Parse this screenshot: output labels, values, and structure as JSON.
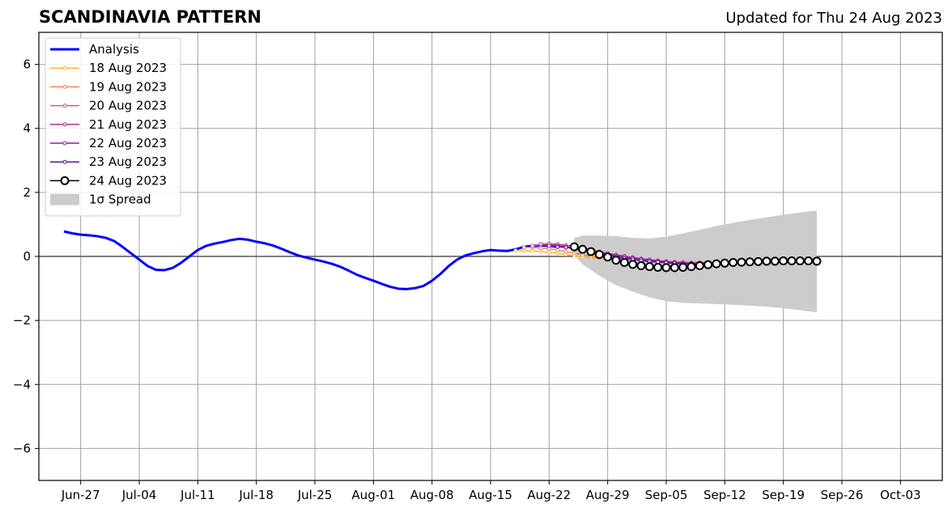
{
  "chart_data": {
    "type": "line",
    "title": "SCANDINAVIA PATTERN",
    "subtitle": "Updated for Thu 24 Aug 2023",
    "xlabel": "",
    "ylabel": "",
    "xlim": [
      "2023-06-22",
      "2023-10-08"
    ],
    "ylim": [
      -7,
      7
    ],
    "grid": true,
    "legend_position": "top-left",
    "x_ticks": [
      "2023-06-27",
      "2023-07-04",
      "2023-07-11",
      "2023-07-18",
      "2023-07-25",
      "2023-08-01",
      "2023-08-08",
      "2023-08-15",
      "2023-08-22",
      "2023-08-29",
      "2023-09-05",
      "2023-09-12",
      "2023-09-19",
      "2023-09-26",
      "2023-10-03"
    ],
    "x_tick_labels": [
      "Jun-27",
      "Jul-04",
      "Jul-11",
      "Jul-18",
      "Jul-25",
      "Aug-01",
      "Aug-08",
      "Aug-15",
      "Aug-22",
      "Aug-29",
      "Sep-05",
      "Sep-12",
      "Sep-19",
      "Sep-26",
      "Oct-03"
    ],
    "y_ticks": [
      6,
      4,
      2,
      0,
      -2,
      -4,
      -6
    ],
    "y_tick_labels": [
      "6",
      "4",
      "2",
      "0",
      "−2",
      "−4",
      "−6"
    ],
    "series": [
      {
        "name": "Analysis",
        "color": "#0000ff",
        "style": "line",
        "x": [
          "2023-06-25",
          "2023-06-26",
          "2023-06-27",
          "2023-06-28",
          "2023-06-29",
          "2023-06-30",
          "2023-07-01",
          "2023-07-02",
          "2023-07-03",
          "2023-07-04",
          "2023-07-05",
          "2023-07-06",
          "2023-07-07",
          "2023-07-08",
          "2023-07-09",
          "2023-07-10",
          "2023-07-11",
          "2023-07-12",
          "2023-07-13",
          "2023-07-14",
          "2023-07-15",
          "2023-07-16",
          "2023-07-17",
          "2023-07-18",
          "2023-07-19",
          "2023-07-20",
          "2023-07-21",
          "2023-07-22",
          "2023-07-23",
          "2023-07-24",
          "2023-07-25",
          "2023-07-26",
          "2023-07-27",
          "2023-07-28",
          "2023-07-29",
          "2023-07-30",
          "2023-07-31",
          "2023-08-01",
          "2023-08-02",
          "2023-08-03",
          "2023-08-04",
          "2023-08-05",
          "2023-08-06",
          "2023-08-07",
          "2023-08-08",
          "2023-08-09",
          "2023-08-10",
          "2023-08-11",
          "2023-08-12",
          "2023-08-13",
          "2023-08-14",
          "2023-08-15",
          "2023-08-16",
          "2023-08-17",
          "2023-08-18",
          "2023-08-19",
          "2023-08-20",
          "2023-08-21",
          "2023-08-22",
          "2023-08-23"
        ],
        "y": [
          0.78,
          0.72,
          0.68,
          0.66,
          0.63,
          0.58,
          0.48,
          0.3,
          0.1,
          -0.1,
          -0.3,
          -0.42,
          -0.43,
          -0.36,
          -0.2,
          0.0,
          0.2,
          0.33,
          0.4,
          0.45,
          0.51,
          0.55,
          0.52,
          0.46,
          0.41,
          0.34,
          0.24,
          0.13,
          0.03,
          -0.04,
          -0.1,
          -0.16,
          -0.23,
          -0.32,
          -0.44,
          -0.57,
          -0.67,
          -0.76,
          -0.86,
          -0.95,
          -1.01,
          -1.02,
          -0.99,
          -0.92,
          -0.76,
          -0.55,
          -0.3,
          -0.1,
          0.03,
          0.1,
          0.16,
          0.2,
          0.18,
          0.17,
          0.22,
          0.3,
          0.33,
          0.34,
          0.33,
          0.3
        ]
      },
      {
        "name": "18 Aug 2023",
        "color": "#fcb52f",
        "style": "small-markers",
        "x": [
          "2023-08-18",
          "2023-08-19",
          "2023-08-20",
          "2023-08-21",
          "2023-08-22",
          "2023-08-23",
          "2023-08-24",
          "2023-08-25",
          "2023-08-26",
          "2023-08-27",
          "2023-08-28"
        ],
        "y": [
          0.18,
          0.18,
          0.17,
          0.15,
          0.13,
          0.1,
          0.06,
          0.02,
          -0.02,
          -0.05,
          -0.07
        ]
      },
      {
        "name": "19 Aug 2023",
        "color": "#f0834f",
        "style": "small-markers",
        "x": [
          "2023-08-19",
          "2023-08-20",
          "2023-08-21",
          "2023-08-22",
          "2023-08-23",
          "2023-08-24",
          "2023-08-25",
          "2023-08-26",
          "2023-08-27",
          "2023-08-28",
          "2023-08-29"
        ],
        "y": [
          0.28,
          0.28,
          0.26,
          0.24,
          0.2,
          0.15,
          0.1,
          0.05,
          0.0,
          -0.04,
          -0.08
        ]
      },
      {
        "name": "20 Aug 2023",
        "color": "#dc5b6b",
        "style": "small-markers",
        "x": [
          "2023-08-20",
          "2023-08-21",
          "2023-08-22",
          "2023-08-23",
          "2023-08-24",
          "2023-08-25",
          "2023-08-26",
          "2023-08-27",
          "2023-08-28",
          "2023-08-29",
          "2023-08-30",
          "2023-08-31",
          "2023-09-01",
          "2023-09-02",
          "2023-09-03",
          "2023-09-04",
          "2023-09-05",
          "2023-09-06",
          "2023-09-07",
          "2023-09-08",
          "2023-09-09",
          "2023-09-10",
          "2023-09-11"
        ],
        "y": [
          0.33,
          0.36,
          0.36,
          0.34,
          0.3,
          0.25,
          0.19,
          0.13,
          0.08,
          0.03,
          -0.01,
          -0.04,
          -0.07,
          -0.09,
          -0.11,
          -0.13,
          -0.15,
          -0.17,
          -0.18,
          -0.19,
          -0.19,
          -0.19,
          -0.18
        ]
      },
      {
        "name": "21 Aug 2023",
        "color": "#b52f8c",
        "style": "small-markers",
        "x": [
          "2023-08-21",
          "2023-08-22",
          "2023-08-23",
          "2023-08-24",
          "2023-08-25",
          "2023-08-26",
          "2023-08-27",
          "2023-08-28",
          "2023-08-29",
          "2023-08-30",
          "2023-08-31",
          "2023-09-01",
          "2023-09-02",
          "2023-09-03",
          "2023-09-04",
          "2023-09-05",
          "2023-09-06",
          "2023-09-07",
          "2023-09-08",
          "2023-09-09",
          "2023-09-10",
          "2023-09-11"
        ],
        "y": [
          0.38,
          0.39,
          0.38,
          0.35,
          0.31,
          0.26,
          0.21,
          0.15,
          0.1,
          0.05,
          0.01,
          -0.03,
          -0.07,
          -0.1,
          -0.13,
          -0.16,
          -0.18,
          -0.2,
          -0.21,
          -0.21,
          -0.21,
          -0.2
        ]
      },
      {
        "name": "22 Aug 2023",
        "color": "#8a1ea5",
        "style": "small-markers",
        "x": [
          "2023-08-22",
          "2023-08-23",
          "2023-08-24",
          "2023-08-25",
          "2023-08-26",
          "2023-08-27",
          "2023-08-28",
          "2023-08-29",
          "2023-08-30",
          "2023-08-31",
          "2023-09-01",
          "2023-09-02",
          "2023-09-03",
          "2023-09-04",
          "2023-09-05",
          "2023-09-06",
          "2023-09-07",
          "2023-09-08",
          "2023-09-09",
          "2023-09-10",
          "2023-09-11"
        ],
        "y": [
          0.33,
          0.33,
          0.3,
          0.26,
          0.21,
          0.15,
          0.1,
          0.06,
          0.02,
          -0.02,
          -0.06,
          -0.09,
          -0.12,
          -0.15,
          -0.17,
          -0.19,
          -0.21,
          -0.22,
          -0.22,
          -0.22,
          -0.21
        ]
      },
      {
        "name": "23 Aug 2023",
        "color": "#55139e",
        "style": "small-markers",
        "x": [
          "2023-08-23",
          "2023-08-24",
          "2023-08-25",
          "2023-08-26",
          "2023-08-27",
          "2023-08-28",
          "2023-08-29",
          "2023-08-30",
          "2023-08-31",
          "2023-09-01",
          "2023-09-02",
          "2023-09-03",
          "2023-09-04",
          "2023-09-05",
          "2023-09-06",
          "2023-09-07",
          "2023-09-08",
          "2023-09-09",
          "2023-09-10",
          "2023-09-11"
        ],
        "y": [
          0.3,
          0.28,
          0.24,
          0.19,
          0.13,
          0.08,
          0.03,
          -0.02,
          -0.06,
          -0.1,
          -0.13,
          -0.16,
          -0.18,
          -0.2,
          -0.22,
          -0.23,
          -0.24,
          -0.24,
          -0.23,
          -0.22
        ]
      },
      {
        "name": "24 Aug 2023",
        "color": "#000000",
        "style": "large-markers",
        "x": [
          "2023-08-25",
          "2023-08-26",
          "2023-08-27",
          "2023-08-28",
          "2023-08-29",
          "2023-08-30",
          "2023-08-31",
          "2023-09-01",
          "2023-09-02",
          "2023-09-03",
          "2023-09-04",
          "2023-09-05",
          "2023-09-06",
          "2023-09-07",
          "2023-09-08",
          "2023-09-09",
          "2023-09-10",
          "2023-09-11",
          "2023-09-12",
          "2023-09-13",
          "2023-09-14",
          "2023-09-15",
          "2023-09-16",
          "2023-09-17",
          "2023-09-18",
          "2023-09-19",
          "2023-09-20",
          "2023-09-21",
          "2023-09-22",
          "2023-09-23"
        ],
        "y": [
          0.3,
          0.22,
          0.15,
          0.06,
          -0.02,
          -0.12,
          -0.19,
          -0.25,
          -0.29,
          -0.32,
          -0.34,
          -0.35,
          -0.35,
          -0.34,
          -0.32,
          -0.29,
          -0.26,
          -0.23,
          -0.21,
          -0.19,
          -0.18,
          -0.17,
          -0.16,
          -0.15,
          -0.15,
          -0.14,
          -0.14,
          -0.14,
          -0.14,
          -0.15
        ]
      }
    ],
    "spread": {
      "name": "1σ Spread",
      "color": "#cccccc",
      "x": [
        "2023-08-25",
        "2023-08-26",
        "2023-08-28",
        "2023-08-30",
        "2023-09-01",
        "2023-09-03",
        "2023-09-05",
        "2023-09-07",
        "2023-09-09",
        "2023-09-11",
        "2023-09-13",
        "2023-09-15",
        "2023-09-17",
        "2023-09-19",
        "2023-09-21",
        "2023-09-23"
      ],
      "upper": [
        0.58,
        0.65,
        0.65,
        0.63,
        0.58,
        0.56,
        0.62,
        0.72,
        0.83,
        0.95,
        1.05,
        1.14,
        1.22,
        1.3,
        1.37,
        1.43
      ],
      "lower": [
        0.05,
        -0.25,
        -0.6,
        -0.9,
        -1.1,
        -1.28,
        -1.4,
        -1.45,
        -1.47,
        -1.49,
        -1.51,
        -1.54,
        -1.57,
        -1.62,
        -1.68,
        -1.75
      ]
    }
  }
}
